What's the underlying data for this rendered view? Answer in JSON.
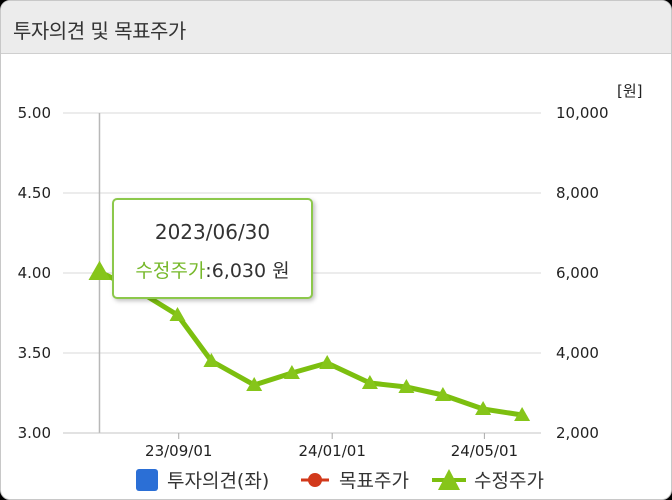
{
  "header": {
    "title": "투자의견 및 목표주가"
  },
  "tooltip": {
    "date": "2023/06/30",
    "series": "수정주가",
    "separator": ":",
    "value": "6,030 원"
  },
  "colors": {
    "price_line": "#7cbf0f",
    "price_marker": "#86c51a",
    "opinion": "#2b6fd6",
    "target": "#d2391b",
    "grid": "#d8d8d8"
  },
  "chart_data": {
    "type": "line",
    "unit_label": "[원]",
    "left_axis": {
      "ylim": [
        3.0,
        5.0
      ],
      "ticks": [
        "5.00",
        "4.50",
        "4.00",
        "3.50",
        "3.00"
      ]
    },
    "right_axis": {
      "ylim": [
        2000,
        10000
      ],
      "ticks": [
        "10,000",
        "8,000",
        "6,000",
        "4,000",
        "2,000"
      ]
    },
    "x_ticks": [
      {
        "date": "2023-09-01",
        "label": "23/09/01"
      },
      {
        "date": "2024-01-01",
        "label": "24/01/01"
      },
      {
        "date": "2024-05-01",
        "label": "24/05/01"
      }
    ],
    "xlim": [
      "2023-06-01",
      "2024-06-15"
    ],
    "grid": true,
    "legend_position": "bottom",
    "series": [
      {
        "name": "투자의견(좌)",
        "axis": "left",
        "marker": "square",
        "points": []
      },
      {
        "name": "목표주가",
        "axis": "right",
        "marker": "circle",
        "points": []
      },
      {
        "name": "수정주가",
        "axis": "right",
        "marker": "triangle",
        "points": [
          {
            "date": "2023-06-30",
            "value": 6030
          },
          {
            "date": "2023-07-31",
            "value": 5550
          },
          {
            "date": "2023-08-31",
            "value": 4950
          },
          {
            "date": "2023-09-27",
            "value": 3800
          },
          {
            "date": "2023-10-31",
            "value": 3200
          },
          {
            "date": "2023-11-30",
            "value": 3500
          },
          {
            "date": "2023-12-28",
            "value": 3750
          },
          {
            "date": "2024-01-31",
            "value": 3250
          },
          {
            "date": "2024-02-29",
            "value": 3150
          },
          {
            "date": "2024-03-29",
            "value": 2950
          },
          {
            "date": "2024-04-30",
            "value": 2600
          },
          {
            "date": "2024-05-31",
            "value": 2450
          }
        ]
      }
    ]
  }
}
